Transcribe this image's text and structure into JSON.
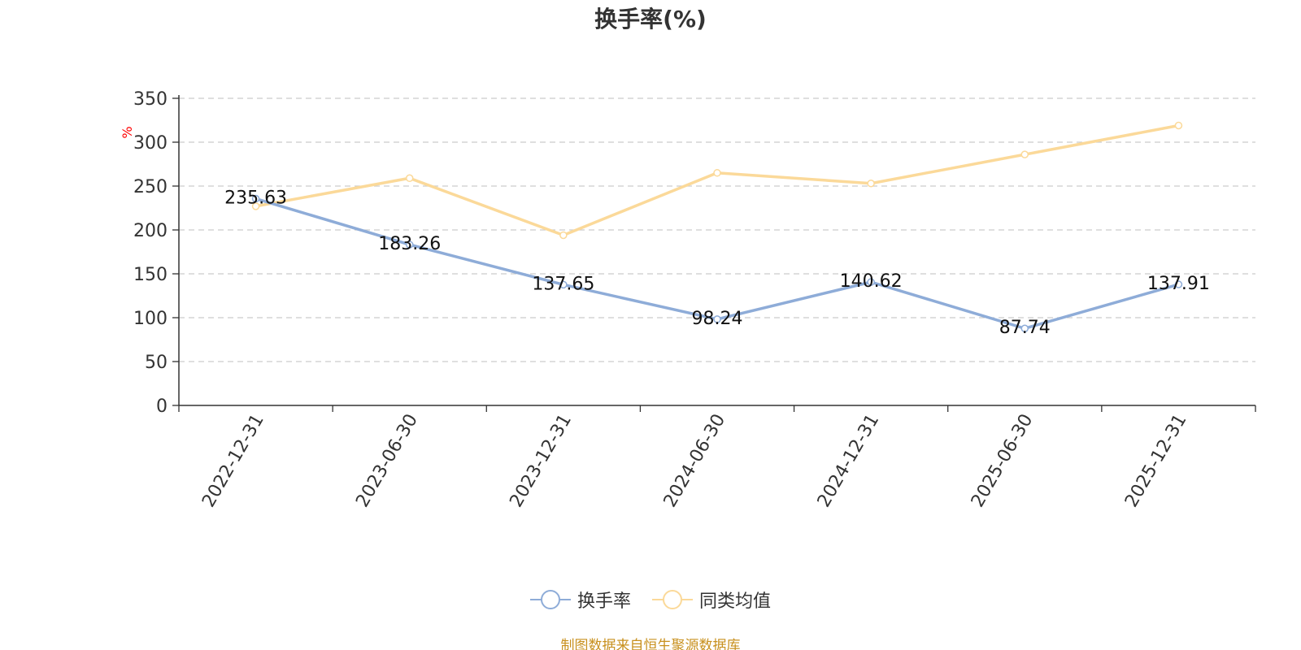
{
  "chart_data": {
    "type": "line",
    "title": "换手率(%)",
    "ylabel": "%",
    "xlabel": "",
    "categories": [
      "2022-12-31",
      "2023-06-30",
      "2023-12-31",
      "2024-06-30",
      "2024-12-31",
      "2025-06-30",
      "2025-12-31"
    ],
    "ylim": [
      0,
      350
    ],
    "yticks": [
      0,
      50,
      100,
      150,
      200,
      250,
      300,
      350
    ],
    "grid": true,
    "legend_position": "bottom",
    "series": [
      {
        "name": "换手率",
        "color": "#8eacd8",
        "values": [
          235.63,
          183.26,
          137.65,
          98.24,
          140.62,
          87.74,
          137.91
        ],
        "data_labels": [
          "235.63",
          "183.26",
          "137.65",
          "98.24",
          "140.62",
          "87.74",
          "137.91"
        ]
      },
      {
        "name": "同类均值",
        "color": "#fbd999",
        "values": [
          227,
          259,
          194,
          265,
          253,
          286,
          319
        ]
      }
    ]
  },
  "axis_label_color": "#ff0000",
  "source_note": "制图数据来自恒生聚源数据库"
}
